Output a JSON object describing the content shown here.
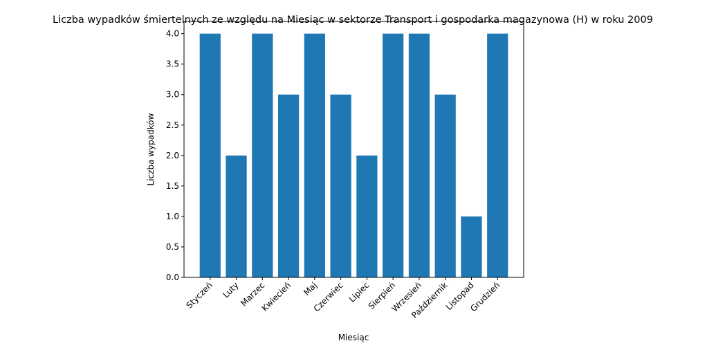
{
  "chart_data": {
    "type": "bar",
    "title": "Liczba wypadków śmiertelnych ze względu na Miesiąc w sektorze Transport i gospodarka magazynowa (H) w roku 2009",
    "xlabel": "Miesiąc",
    "ylabel": "Liczba wypadków",
    "categories": [
      "Styczeń",
      "Luty",
      "Marzec",
      "Kwiecień",
      "Maj",
      "Czerwiec",
      "Lipiec",
      "Sierpień",
      "Wrzesień",
      "Październik",
      "Listopad",
      "Grudzień"
    ],
    "values": [
      4,
      2,
      4,
      3,
      4,
      3,
      2,
      4,
      4,
      3,
      1,
      4
    ],
    "ylim": [
      0,
      4.2
    ],
    "yticks": [
      "0.0",
      "0.5",
      "1.0",
      "1.5",
      "2.0",
      "2.5",
      "3.0",
      "3.5",
      "4.0"
    ],
    "grid": false,
    "legend": "none",
    "bar_color": "#1f77b4"
  }
}
